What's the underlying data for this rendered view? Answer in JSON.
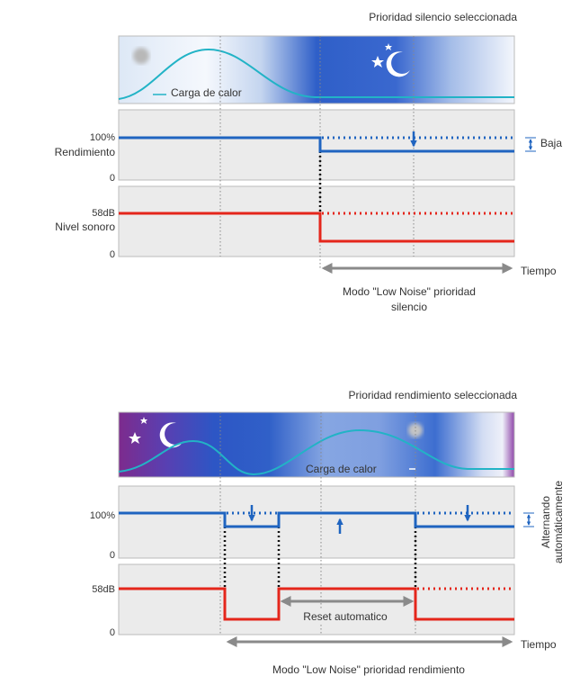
{
  "top": {
    "title": "Prioridad silencio seleccionada",
    "heat_label": "Carga de calor",
    "performance": {
      "max": "100%",
      "label": "Rendimiento",
      "min": "0",
      "drop": "Baja"
    },
    "noise": {
      "max": "58dB",
      "label": "Nivel sonoro",
      "min": "0"
    },
    "time": "Tiempo",
    "mode": [
      "Modo \"Low Noise\" prioridad",
      "silencio"
    ]
  },
  "bottom": {
    "title": "Prioridad rendimiento seleccionada",
    "heat_label": "Carga de calor",
    "alternating": [
      "Alternando",
      "automáticamente"
    ],
    "performance": {
      "max": "100%",
      "min": "0"
    },
    "noise": {
      "max": "58dB",
      "min": "0"
    },
    "reset": "Reset automatico",
    "time": "Tiempo",
    "mode": "Modo \"Low Noise\" prioridad rendimiento"
  }
}
